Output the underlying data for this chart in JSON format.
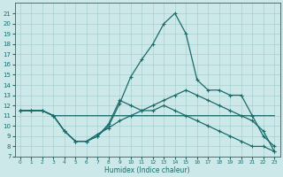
{
  "xlabel": "Humidex (Indice chaleur)",
  "xlim": [
    -0.5,
    23.5
  ],
  "ylim": [
    7,
    22
  ],
  "yticks": [
    7,
    8,
    9,
    10,
    11,
    12,
    13,
    14,
    15,
    16,
    17,
    18,
    19,
    20,
    21
  ],
  "xticks": [
    0,
    1,
    2,
    3,
    4,
    5,
    6,
    7,
    8,
    9,
    10,
    11,
    12,
    13,
    14,
    15,
    16,
    17,
    18,
    19,
    20,
    21,
    22,
    23
  ],
  "bg_color": "#cce8e8",
  "line_color": "#1a6b6b",
  "grid_color": "#a0c8c8",
  "line1_x": [
    0,
    1,
    2,
    3,
    4,
    5,
    6,
    7,
    8,
    9,
    10,
    11,
    12,
    13,
    14,
    15,
    16,
    17,
    18,
    19,
    20,
    21,
    22,
    23
  ],
  "line1_y": [
    11.5,
    11.5,
    11.5,
    11.0,
    9.5,
    8.5,
    8.5,
    9.0,
    10.0,
    12.2,
    14.8,
    16.5,
    18.0,
    20.0,
    21.0,
    19.0,
    14.5,
    13.5,
    13.5,
    13.0,
    13.0,
    11.0,
    9.0,
    8.0
  ],
  "line2_x": [
    0,
    1,
    2,
    3,
    4,
    5,
    6,
    7,
    8,
    9,
    10,
    11,
    12,
    13,
    14,
    15,
    16,
    17,
    18,
    19,
    20,
    21,
    22,
    23
  ],
  "line2_y": [
    11.5,
    11.5,
    11.5,
    11.0,
    9.5,
    8.5,
    8.5,
    9.0,
    10.2,
    12.5,
    12.0,
    11.5,
    11.5,
    12.0,
    11.5,
    11.0,
    10.5,
    10.0,
    9.5,
    9.0,
    8.5,
    8.0,
    8.0,
    7.5
  ],
  "line3_x": [
    0,
    1,
    2,
    3,
    5,
    6,
    7,
    8,
    9,
    10,
    11,
    12,
    13,
    14,
    15,
    16,
    17,
    18,
    19,
    20,
    21,
    22,
    23
  ],
  "line3_y": [
    11.5,
    11.5,
    11.5,
    11.0,
    11.0,
    11.0,
    11.0,
    11.0,
    11.0,
    11.0,
    11.0,
    11.0,
    11.0,
    11.0,
    11.0,
    11.0,
    11.0,
    11.0,
    11.0,
    11.0,
    11.0,
    11.0,
    11.0
  ],
  "line4_x": [
    0,
    1,
    2,
    3,
    4,
    5,
    6,
    7,
    8,
    9,
    10,
    11,
    12,
    13,
    14,
    15,
    16,
    17,
    18,
    19,
    20,
    21,
    22,
    23
  ],
  "line4_y": [
    11.5,
    11.5,
    11.5,
    11.0,
    9.5,
    8.5,
    8.5,
    9.2,
    9.8,
    10.5,
    11.0,
    11.5,
    12.0,
    12.5,
    13.0,
    13.5,
    13.0,
    12.5,
    12.0,
    11.5,
    11.0,
    10.5,
    9.5,
    7.5
  ]
}
